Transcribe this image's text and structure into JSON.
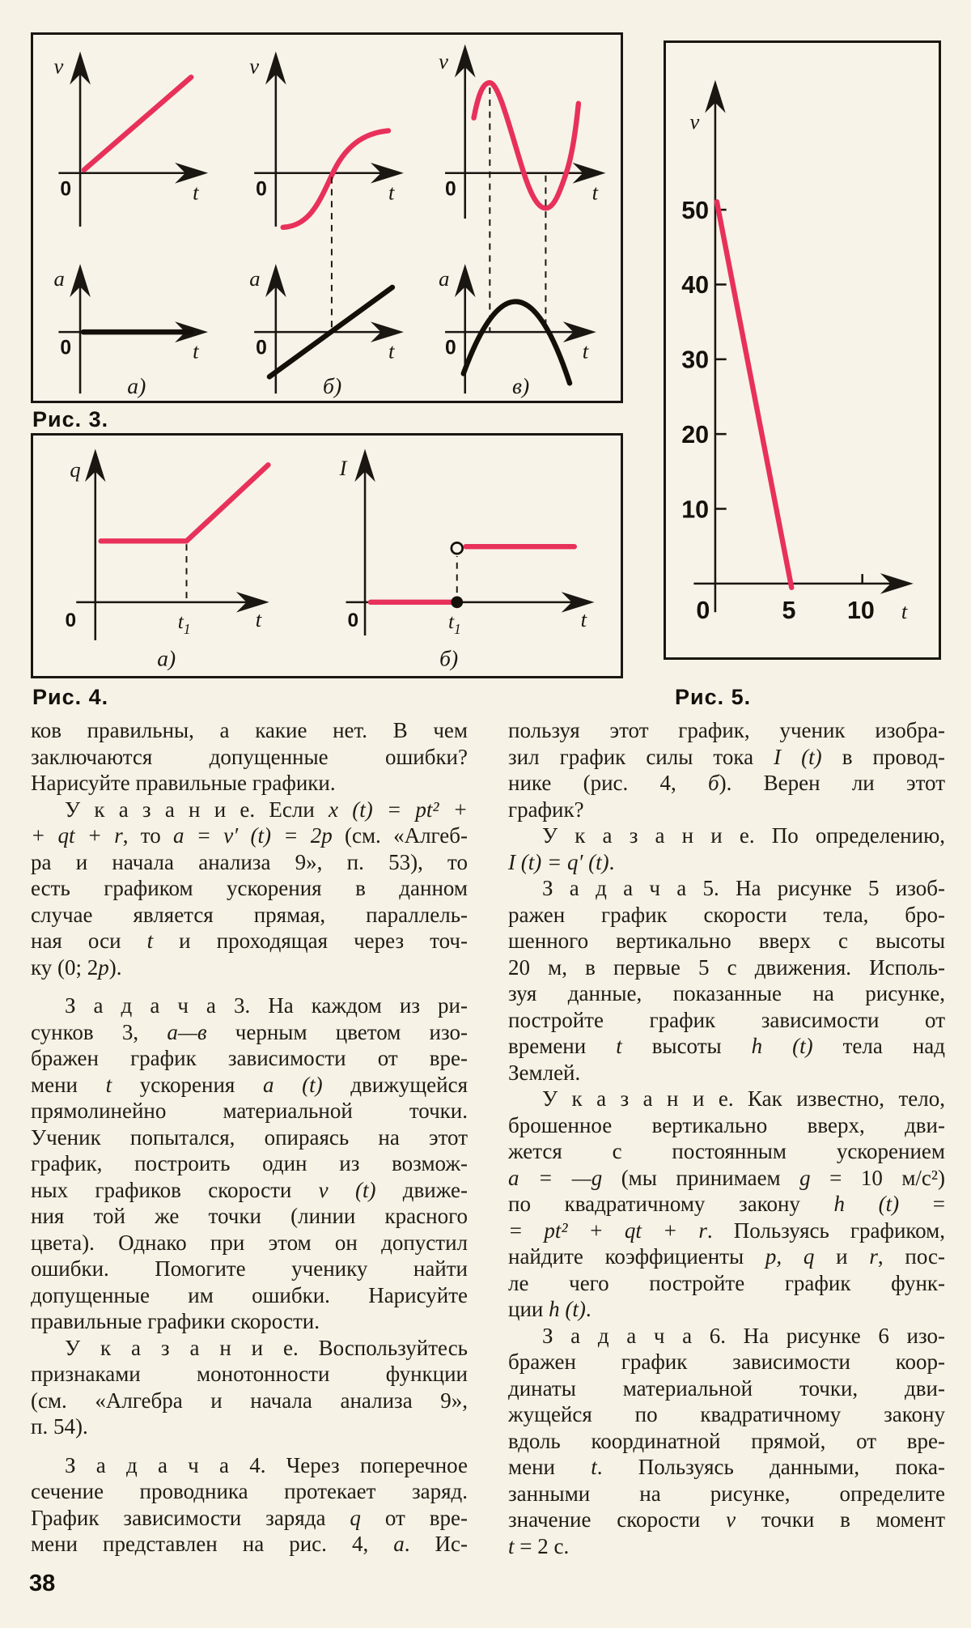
{
  "page": {
    "paper_color": "#f6f2e6",
    "ink_color": "#1a1612",
    "accent_red": "#e8315a",
    "number": "38"
  },
  "figures": {
    "fig3": {
      "caption": "Рис. 3.",
      "v": "v",
      "a": "a",
      "t": "t",
      "o": "0",
      "panel_a": "а)",
      "panel_b": "б)",
      "panel_v": "в)"
    },
    "fig4": {
      "caption": "Рис. 4.",
      "q": "q",
      "I": "I",
      "t": "t",
      "t1": "t",
      "t1s": "1",
      "o": "0",
      "panel_a": "а)",
      "panel_b": "б)"
    },
    "f5": {
      "caption": "Рис. 5.",
      "v": "v",
      "t": "t",
      "o": "0",
      "y": [
        "50",
        "40",
        "30",
        "20",
        "10"
      ],
      "x": [
        "5",
        "10"
      ]
    }
  },
  "chart_data": [
    {
      "type": "line",
      "figure": "Рис. 3",
      "panels": [
        {
          "label": "а)",
          "v_t": "red straight line rising from origin",
          "a_t": "black constant line on t-axis"
        },
        {
          "label": "б)",
          "v_t": "red S-curve from below axis rising and levelling",
          "a_t": "black straight rising line crossing axis at dashed line"
        },
        {
          "label": "в)",
          "v_t": "red wave: maximum, dip below axis to minimum, rise; dashed verticals at extrema",
          "a_t": "black downward parabola crossing axis between dashed lines"
        }
      ]
    },
    {
      "type": "line",
      "figure": "Рис. 4",
      "panels": [
        {
          "label": "а)",
          "series": "q(t): constant until t1, then linear increase",
          "dashed_at": "t1"
        },
        {
          "label": "б)",
          "series": "I(t): zero until t1 (closed dot), jump to constant after t1 (open dot)"
        }
      ]
    },
    {
      "type": "line",
      "figure": "Рис. 5",
      "xlabel": "t",
      "ylabel": "v",
      "yticks": [
        10,
        20,
        30,
        40,
        50
      ],
      "xticks": [
        5,
        10
      ],
      "series": [
        {
          "name": "v(t)",
          "points": [
            [
              0,
              50
            ],
            [
              5,
              0
            ]
          ]
        }
      ]
    }
  ],
  "text": {
    "left": [
      "ков правильны, а какие нет. В чем",
      "заключаются допущенные ошибки?",
      {
        "l": 1,
        "s": [
          [
            "Нарисуйте правильные графики.",
            0
          ]
        ]
      },
      {
        "i": 1,
        "s": [
          [
            "У к а з а н и е. Если ",
            0
          ],
          [
            "x (t) = pt² +",
            1
          ]
        ]
      },
      {
        "s": [
          [
            "+ qt + r",
            1
          ],
          [
            ", то ",
            0
          ],
          [
            "a = v′ (t) = 2p",
            1
          ],
          [
            " (см. «Алгеб-",
            0
          ]
        ]
      },
      "ра и начала анализа 9», п. 53), то",
      "есть графиком ускорения в данном",
      "случае является прямая, параллель-",
      {
        "s": [
          [
            "ная оси ",
            0
          ],
          [
            "t",
            1
          ],
          [
            " и проходящая через точ-",
            0
          ]
        ]
      },
      {
        "l": 1,
        "s": [
          [
            "ку (0; 2",
            0
          ],
          [
            "p",
            1
          ],
          [
            ").",
            0
          ]
        ]
      },
      {
        "i": 1,
        "g": 1,
        "s": [
          [
            "З а д а ч а 3. На каждом из ри-",
            0
          ]
        ]
      },
      {
        "s": [
          [
            "сунков 3, ",
            0
          ],
          [
            "а—в",
            1
          ],
          [
            " черным цветом изо-",
            0
          ]
        ]
      },
      "бражен график зависимости от вре-",
      {
        "s": [
          [
            "мени ",
            0
          ],
          [
            "t",
            1
          ],
          [
            " ускорения ",
            0
          ],
          [
            "a (t)",
            1
          ],
          [
            " движущейся",
            0
          ]
        ]
      },
      "прямолинейно материальной точки.",
      "Ученик попытался, опираясь на этот",
      "график, построить один из возмож-",
      {
        "s": [
          [
            "ных графиков скорости ",
            0
          ],
          [
            "v (t)",
            1
          ],
          [
            " движе-",
            0
          ]
        ]
      },
      "ния той же точки (линии красного",
      "цвета). Однако при этом он допустил",
      "ошибки. Помогите ученику найти",
      "допущенные им ошибки. Нарисуйте",
      {
        "l": 1,
        "s": [
          [
            "правильные графики скорости.",
            0
          ]
        ]
      },
      {
        "i": 1,
        "s": [
          [
            "У к а з а н и е. Воспользуйтесь",
            0
          ]
        ]
      },
      "признаками монотонности функции",
      "(см. «Алгебра и начала анализа 9»,",
      {
        "l": 1,
        "s": [
          [
            "п. 54).",
            0
          ]
        ]
      },
      {
        "i": 1,
        "g": 1,
        "s": [
          [
            "З а д а ч а 4. Через поперечное",
            0
          ]
        ]
      },
      "сечение проводника протекает заряд.",
      {
        "s": [
          [
            "График зависимости заряда ",
            0
          ],
          [
            "q",
            1
          ],
          [
            " от вре-",
            0
          ]
        ]
      },
      {
        "s": [
          [
            "мени представлен на рис. 4, ",
            0
          ],
          [
            "а",
            1
          ],
          [
            ". Ис-",
            0
          ]
        ]
      }
    ],
    "right": [
      "пользуя этот график, ученик изобра-",
      {
        "s": [
          [
            "зил график силы тока ",
            0
          ],
          [
            "I (t)",
            1
          ],
          [
            " в провод-",
            0
          ]
        ]
      },
      {
        "s": [
          [
            "нике (рис. 4, ",
            0
          ],
          [
            "б",
            1
          ],
          [
            "). Верен ли этот",
            0
          ]
        ]
      },
      {
        "l": 1,
        "s": [
          [
            "график?",
            0
          ]
        ]
      },
      {
        "i": 1,
        "s": [
          [
            "У к а з а н и е. По определению,",
            0
          ]
        ]
      },
      {
        "l": 1,
        "s": [
          [
            "I (t) = q′ (t)",
            1
          ],
          [
            ".",
            0
          ]
        ]
      },
      {
        "i": 1,
        "s": [
          [
            "З а д а ч а 5. На рисунке 5 изоб-",
            0
          ]
        ]
      },
      "ражен график скорости тела, бро-",
      "шенного вертикально вверх с высоты",
      "20 м, в первые 5 с движения. Исполь-",
      "зуя данные, показанные на рисунке,",
      "постройте график зависимости от",
      {
        "s": [
          [
            "времени ",
            0
          ],
          [
            "t",
            1
          ],
          [
            " высоты ",
            0
          ],
          [
            "h (t)",
            1
          ],
          [
            " тела над",
            0
          ]
        ]
      },
      {
        "l": 1,
        "s": [
          [
            "Землей.",
            0
          ]
        ]
      },
      {
        "i": 1,
        "s": [
          [
            "У к а з а н и е. Как известно, тело,",
            0
          ]
        ]
      },
      "брошенное вертикально вверх, дви-",
      "жется с постоянным ускорением",
      {
        "s": [
          [
            "a = —g",
            1
          ],
          [
            " (мы принимаем ",
            0
          ],
          [
            "g",
            1
          ],
          [
            " = 10 м/с²)",
            0
          ]
        ]
      },
      {
        "s": [
          [
            "по квадратичному закону ",
            0
          ],
          [
            "h (t)",
            1
          ],
          [
            " =",
            0
          ]
        ]
      },
      {
        "s": [
          [
            "= pt² + qt + r",
            1
          ],
          [
            ". Пользуясь графиком,",
            0
          ]
        ]
      },
      {
        "s": [
          [
            "найдите коэффициенты ",
            0
          ],
          [
            "p, q",
            1
          ],
          [
            " и ",
            0
          ],
          [
            "r",
            1
          ],
          [
            ", пос-",
            0
          ]
        ]
      },
      "ле чего постройте график функ-",
      {
        "l": 1,
        "s": [
          [
            "ции ",
            0
          ],
          [
            "h (t)",
            1
          ],
          [
            ".",
            0
          ]
        ]
      },
      {
        "i": 1,
        "s": [
          [
            "З а д а ч а 6. На рисунке 6 изо-",
            0
          ]
        ]
      },
      "бражен график зависимости коор-",
      "динаты материальной точки, дви-",
      "жущейся по квадратичному закону",
      "вдоль координатной прямой, от вре-",
      {
        "s": [
          [
            "мени ",
            0
          ],
          [
            "t",
            1
          ],
          [
            ". Пользуясь данными, пока-",
            0
          ]
        ]
      },
      "занными на рисунке, определите",
      {
        "s": [
          [
            "значение скорости ",
            0
          ],
          [
            "v",
            1
          ],
          [
            " точки в момент",
            0
          ]
        ]
      },
      {
        "l": 1,
        "s": [
          [
            "t",
            1
          ],
          [
            " = 2 с.",
            0
          ]
        ]
      }
    ]
  }
}
